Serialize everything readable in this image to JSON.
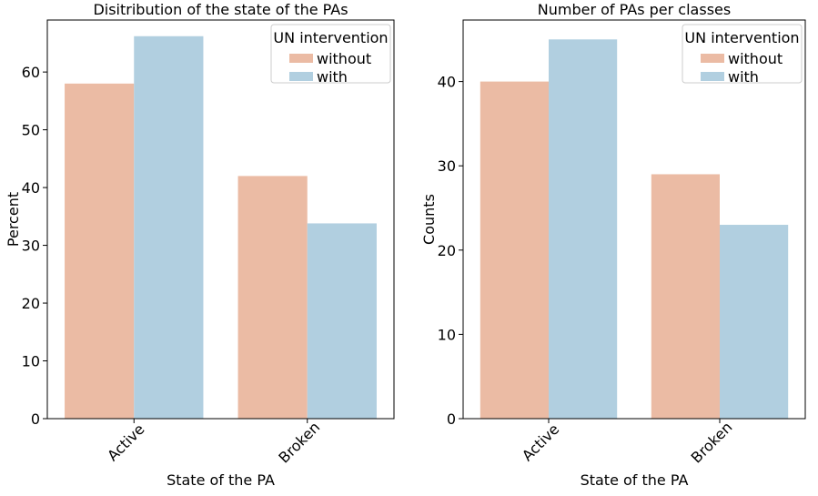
{
  "chart_data": [
    {
      "type": "bar",
      "title": "Disitribution of the state of the PAs",
      "xlabel": "State of the PA",
      "ylabel": "Percent",
      "categories": [
        "Active",
        "Broken"
      ],
      "ylim": [
        0,
        69
      ],
      "yticks": [
        0,
        10,
        20,
        30,
        40,
        50,
        60
      ],
      "legend": {
        "title": "UN intervention",
        "placement": "top-right"
      },
      "series": [
        {
          "name": "without",
          "color": "#ebbba4",
          "values": [
            58.0,
            42.0
          ]
        },
        {
          "name": "with",
          "color": "#b1cfe0",
          "values": [
            66.2,
            33.8
          ]
        }
      ],
      "grid": false
    },
    {
      "type": "bar",
      "title": "Number of PAs per classes",
      "xlabel": "State of the PA",
      "ylabel": "Counts",
      "categories": [
        "Active",
        "Broken"
      ],
      "ylim": [
        0,
        47.3
      ],
      "yticks": [
        0,
        10,
        20,
        30,
        40
      ],
      "legend": {
        "title": "UN intervention",
        "placement": "top-right"
      },
      "series": [
        {
          "name": "without",
          "color": "#ebbba4",
          "values": [
            40,
            29
          ]
        },
        {
          "name": "with",
          "color": "#b1cfe0",
          "values": [
            45,
            23
          ]
        }
      ],
      "grid": false
    }
  ]
}
